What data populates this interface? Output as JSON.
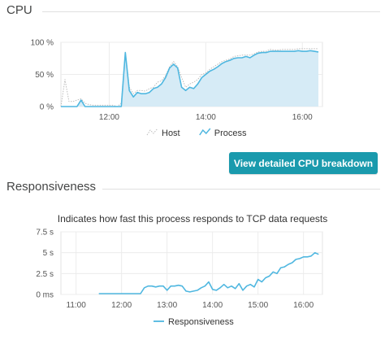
{
  "sections": {
    "cpu_title": "CPU",
    "responsiveness_title": "Responsiveness",
    "breakdown_button": "View detailed CPU breakdown"
  },
  "chart_data": [
    {
      "type": "area",
      "title": "",
      "xlabel": "",
      "ylabel": "",
      "x_unit": "time",
      "xlim": [
        "11:00",
        "16:25"
      ],
      "xticks": [
        "12:00",
        "14:00",
        "16:00"
      ],
      "ylim": [
        0,
        100
      ],
      "yticks": [
        "0 %",
        "50 %",
        "100 %"
      ],
      "grid": true,
      "legend": "bottom",
      "series": [
        {
          "name": "Host",
          "style": "dotted",
          "color": "#bbbbbb",
          "x": [
            "11:00",
            "11:05",
            "11:10",
            "11:15",
            "11:20",
            "11:25",
            "11:30",
            "11:35",
            "11:40",
            "11:45",
            "11:50",
            "11:55",
            "12:00",
            "12:05",
            "12:10",
            "12:15",
            "12:20",
            "12:25",
            "12:30",
            "12:35",
            "12:40",
            "12:45",
            "12:50",
            "12:55",
            "13:00",
            "13:05",
            "13:10",
            "13:15",
            "13:20",
            "13:25",
            "13:30",
            "13:35",
            "13:40",
            "13:45",
            "13:50",
            "13:55",
            "14:00",
            "14:05",
            "14:10",
            "14:15",
            "14:20",
            "14:25",
            "14:30",
            "14:35",
            "14:40",
            "14:45",
            "14:50",
            "14:55",
            "15:00",
            "15:05",
            "15:10",
            "15:15",
            "15:20",
            "15:25",
            "15:30",
            "15:35",
            "15:40",
            "15:45",
            "15:50",
            "15:55",
            "16:00",
            "16:05",
            "16:10",
            "16:15",
            "16:20"
          ],
          "values": [
            0,
            42,
            8,
            8,
            10,
            12,
            5,
            3,
            2,
            2,
            2,
            2,
            2,
            2,
            0,
            5,
            85,
            30,
            20,
            25,
            25,
            24,
            28,
            30,
            38,
            40,
            48,
            62,
            70,
            62,
            45,
            30,
            35,
            38,
            42,
            50,
            52,
            58,
            62,
            66,
            70,
            72,
            74,
            78,
            79,
            80,
            80,
            80,
            82,
            85,
            86,
            86,
            89,
            88,
            88,
            89,
            89,
            89,
            89,
            90,
            90,
            90,
            90,
            90,
            90
          ]
        },
        {
          "name": "Process",
          "style": "area",
          "color": "#4fb7e0",
          "fill": "#d6ebf6",
          "x": [
            "11:00",
            "11:05",
            "11:10",
            "11:15",
            "11:20",
            "11:25",
            "11:30",
            "11:35",
            "11:40",
            "11:45",
            "11:50",
            "11:55",
            "12:00",
            "12:05",
            "12:10",
            "12:15",
            "12:20",
            "12:25",
            "12:30",
            "12:35",
            "12:40",
            "12:45",
            "12:50",
            "12:55",
            "13:00",
            "13:05",
            "13:10",
            "13:15",
            "13:20",
            "13:25",
            "13:30",
            "13:35",
            "13:40",
            "13:45",
            "13:50",
            "13:55",
            "14:00",
            "14:05",
            "14:10",
            "14:15",
            "14:20",
            "14:25",
            "14:30",
            "14:35",
            "14:40",
            "14:45",
            "14:50",
            "14:55",
            "15:00",
            "15:05",
            "15:10",
            "15:15",
            "15:20",
            "15:25",
            "15:30",
            "15:35",
            "15:40",
            "15:45",
            "15:50",
            "15:55",
            "16:00",
            "16:05",
            "16:10",
            "16:15",
            "16:20"
          ],
          "values": [
            0,
            0,
            0,
            0,
            0,
            10,
            0,
            0,
            0,
            0,
            0,
            0,
            0,
            0,
            0,
            0,
            84,
            25,
            15,
            22,
            20,
            20,
            22,
            28,
            30,
            35,
            45,
            60,
            66,
            60,
            30,
            25,
            30,
            28,
            35,
            45,
            50,
            55,
            58,
            62,
            67,
            70,
            72,
            75,
            76,
            76,
            78,
            76,
            80,
            83,
            84,
            84,
            86,
            86,
            86,
            86,
            86,
            86,
            86,
            87,
            86,
            86,
            87,
            86,
            85
          ]
        }
      ]
    },
    {
      "type": "line",
      "title": "Indicates how fast this process responds to TCP data requests",
      "xlabel": "",
      "ylabel": "",
      "x_unit": "time",
      "xlim": [
        "10:40",
        "16:25"
      ],
      "xticks": [
        "11:00",
        "12:00",
        "13:00",
        "14:00",
        "15:00",
        "16:00"
      ],
      "ylim": [
        0,
        7.5
      ],
      "yticks": [
        "0 ms",
        "2.5 s",
        "5 s",
        "7.5 s"
      ],
      "grid": true,
      "legend": "bottom",
      "series": [
        {
          "name": "Responsiveness",
          "color": "#4fb7e0",
          "x": [
            "11:30",
            "11:35",
            "12:25",
            "12:30",
            "12:35",
            "12:40",
            "12:45",
            "12:50",
            "12:55",
            "13:00",
            "13:05",
            "13:10",
            "13:15",
            "13:20",
            "13:25",
            "13:30",
            "13:35",
            "13:40",
            "13:45",
            "13:50",
            "13:55",
            "14:00",
            "14:05",
            "14:10",
            "14:15",
            "14:20",
            "14:25",
            "14:30",
            "14:35",
            "14:40",
            "14:45",
            "14:50",
            "14:55",
            "15:00",
            "15:05",
            "15:10",
            "15:15",
            "15:20",
            "15:25",
            "15:30",
            "15:35",
            "15:40",
            "15:45",
            "15:50",
            "15:55",
            "16:00",
            "16:05",
            "16:10",
            "16:15",
            "16:20"
          ],
          "values": [
            0.1,
            0.1,
            0.1,
            0.8,
            1.0,
            1.0,
            0.9,
            1.0,
            1.0,
            0.5,
            1.0,
            1.0,
            1.1,
            1.0,
            0.4,
            0.3,
            0.4,
            0.5,
            0.8,
            1.0,
            1.5,
            0.6,
            0.5,
            0.8,
            1.2,
            0.8,
            1.0,
            0.7,
            1.3,
            0.5,
            1.0,
            1.2,
            0.9,
            1.8,
            1.5,
            2.0,
            2.2,
            2.7,
            2.5,
            3.2,
            3.3,
            3.6,
            3.8,
            4.2,
            4.3,
            4.5,
            4.5,
            4.6,
            5.0,
            4.8
          ]
        }
      ]
    }
  ]
}
